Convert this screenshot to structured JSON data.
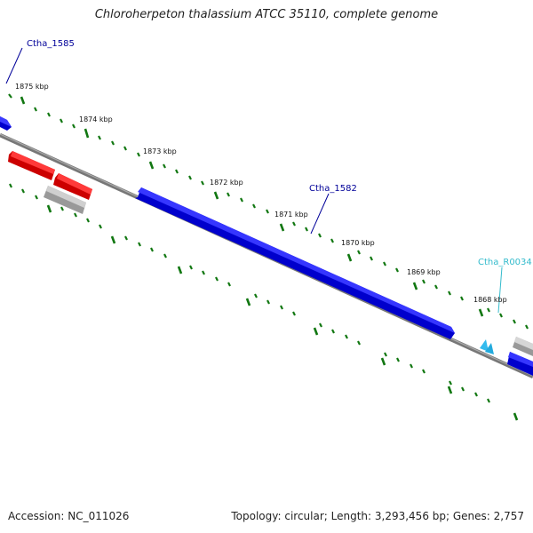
{
  "title": "Chloroherpeton thalassium ATCC 35110, complete genome",
  "footer": {
    "accession": "Accession: NC_011026",
    "topology": "Topology: circular; Length: 3,293,456 bp; Genes: 2,757"
  },
  "kbp_labels": [
    "1875 kbp",
    "1874 kbp",
    "1873 kbp",
    "1872 kbp",
    "1871 kbp",
    "1870 kbp",
    "1869 kbp",
    "1868 kbp"
  ],
  "gene_labels": [
    "Ctha_1585",
    "Ctha_1582",
    "Ctha_R0034"
  ],
  "colors": {
    "cds_forward": "#0000ee",
    "cds_reverse": "#ee0000",
    "pseudo": "#bbbbbb",
    "rna": "#33bbee",
    "backbone": "#777777",
    "ticks": "#117711",
    "gene_label_dark": "#000099",
    "gene_label_rna": "#33bbcc"
  }
}
